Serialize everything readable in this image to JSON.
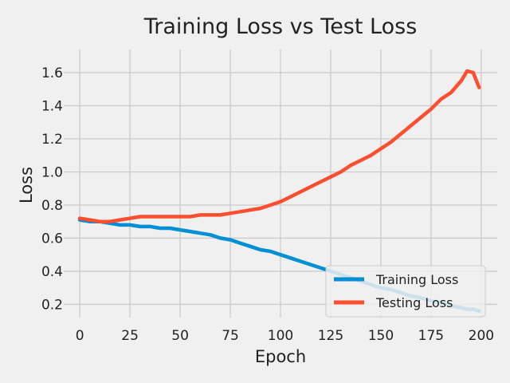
{
  "chart_data": {
    "type": "line",
    "title": "Training Loss vs Test Loss",
    "xlabel": "Epoch",
    "ylabel": "Loss",
    "xlim": [
      -8,
      208
    ],
    "ylim": [
      0.12,
      1.74
    ],
    "xticks": [
      0,
      25,
      50,
      75,
      100,
      125,
      150,
      175,
      200
    ],
    "yticks": [
      0.2,
      0.4,
      0.6,
      0.8,
      1.0,
      1.2,
      1.4,
      1.6
    ],
    "ytick_labels": [
      "0.2",
      "0.4",
      "0.6",
      "0.8",
      "1.0",
      "1.2",
      "1.4",
      "1.6"
    ],
    "grid": true,
    "legend_position": "lower-right",
    "colors": {
      "training": "#008fd5",
      "testing": "#fc4f30"
    },
    "x": [
      0,
      5,
      10,
      15,
      20,
      25,
      30,
      35,
      40,
      45,
      50,
      55,
      60,
      65,
      70,
      75,
      80,
      85,
      90,
      95,
      100,
      105,
      110,
      115,
      120,
      125,
      130,
      135,
      140,
      145,
      150,
      155,
      160,
      165,
      170,
      175,
      180,
      185,
      190,
      193,
      196,
      199
    ],
    "series": [
      {
        "name": "Training Loss",
        "values": [
          0.71,
          0.7,
          0.7,
          0.69,
          0.68,
          0.68,
          0.67,
          0.67,
          0.66,
          0.66,
          0.65,
          0.64,
          0.63,
          0.62,
          0.6,
          0.59,
          0.57,
          0.55,
          0.53,
          0.52,
          0.5,
          0.48,
          0.46,
          0.44,
          0.42,
          0.4,
          0.38,
          0.36,
          0.34,
          0.32,
          0.3,
          0.29,
          0.27,
          0.25,
          0.24,
          0.22,
          0.21,
          0.19,
          0.18,
          0.17,
          0.17,
          0.16
        ]
      },
      {
        "name": "Testing Loss",
        "values": [
          0.72,
          0.71,
          0.7,
          0.7,
          0.71,
          0.72,
          0.73,
          0.73,
          0.73,
          0.73,
          0.73,
          0.73,
          0.74,
          0.74,
          0.74,
          0.75,
          0.76,
          0.77,
          0.78,
          0.8,
          0.82,
          0.85,
          0.88,
          0.91,
          0.94,
          0.97,
          1.0,
          1.04,
          1.07,
          1.1,
          1.14,
          1.18,
          1.23,
          1.28,
          1.33,
          1.38,
          1.44,
          1.48,
          1.55,
          1.61,
          1.6,
          1.51
        ]
      }
    ]
  }
}
